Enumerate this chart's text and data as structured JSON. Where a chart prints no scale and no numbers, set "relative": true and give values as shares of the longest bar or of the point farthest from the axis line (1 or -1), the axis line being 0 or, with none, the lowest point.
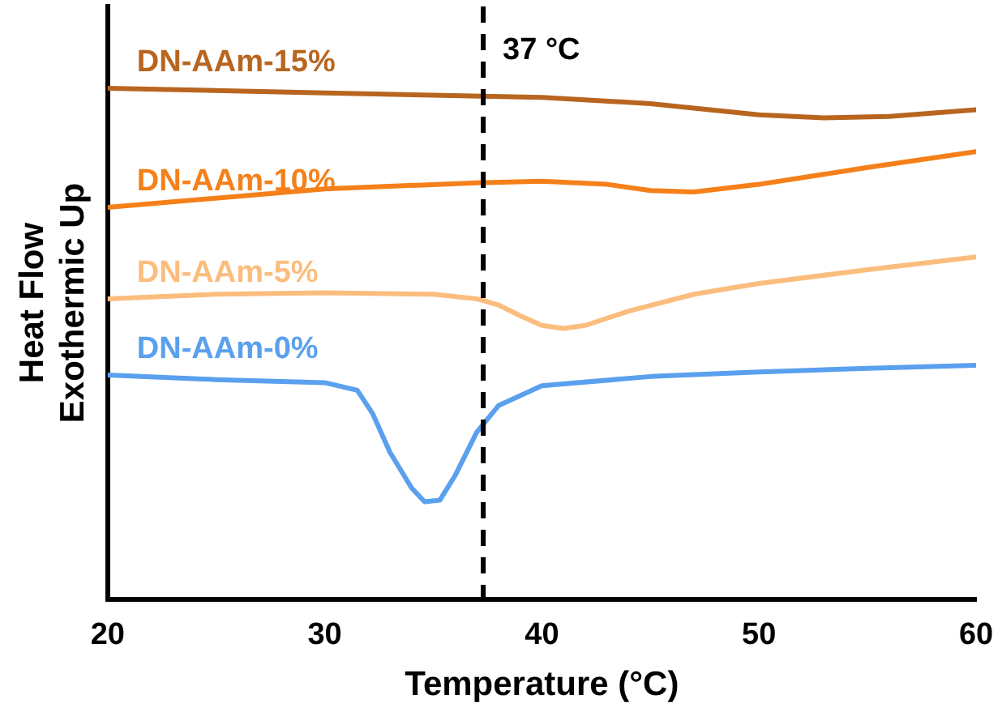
{
  "chart_data": {
    "type": "line",
    "xlabel": "Temperature (°C)",
    "ylabel": "Heat Flow\nExothermic Up",
    "relative": true,
    "xlim": [
      20,
      60
    ],
    "xticks": [
      20,
      30,
      40,
      50,
      60
    ],
    "grid": false,
    "legend": false,
    "marker": "none",
    "line_style": "solid",
    "ref_lines": [
      {
        "axis": "x",
        "value": 37.3,
        "label": "37 °C",
        "color": "#000000",
        "line_style": "dashed"
      }
    ],
    "series": [
      {
        "name": "DN-AAm-15%",
        "color": "#b8651f",
        "x": [
          20,
          30,
          40,
          45,
          50,
          53,
          56,
          60
        ],
        "values": [
          1,
          0.991,
          0.982,
          0.97,
          0.948,
          0.942,
          0.945,
          0.958
        ]
      },
      {
        "name": "DN-AAm-10%",
        "color": "#f5801a",
        "x": [
          20,
          30,
          37,
          40,
          43,
          45,
          47,
          50,
          55,
          60
        ],
        "values": [
          0.767,
          0.803,
          0.815,
          0.818,
          0.812,
          0.8,
          0.797,
          0.812,
          0.845,
          0.876
        ]
      },
      {
        "name": "DN-AAm-5%",
        "color": "#fbbd7e",
        "x": [
          20,
          25,
          30,
          35,
          37,
          38,
          39,
          40,
          41,
          42,
          44,
          47,
          50,
          55,
          60
        ],
        "values": [
          0.588,
          0.597,
          0.6,
          0.597,
          0.588,
          0.576,
          0.555,
          0.536,
          0.53,
          0.536,
          0.564,
          0.597,
          0.618,
          0.645,
          0.67
        ]
      },
      {
        "name": "DN-AAm-0%",
        "color": "#5aa0ee",
        "x": [
          20,
          25,
          30,
          31.5,
          32.2,
          33,
          34,
          34.6,
          35.3,
          36,
          37,
          38,
          40,
          45,
          50,
          55,
          60
        ],
        "values": [
          0.439,
          0.43,
          0.424,
          0.409,
          0.364,
          0.288,
          0.218,
          0.191,
          0.194,
          0.242,
          0.327,
          0.379,
          0.418,
          0.436,
          0.445,
          0.452,
          0.458
        ]
      }
    ]
  }
}
